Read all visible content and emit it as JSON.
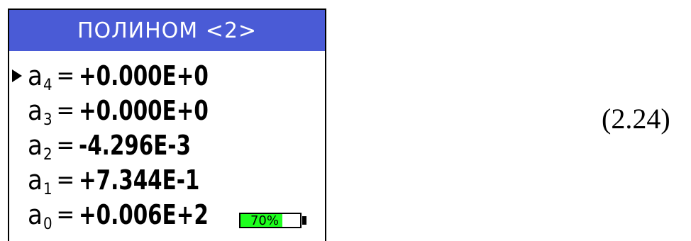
{
  "screen": {
    "title": "ПОЛИНОМ <2>",
    "coefficients": [
      {
        "name": "a",
        "sub": "4",
        "eq": "=",
        "value": "+0.000E+0",
        "selected": true
      },
      {
        "name": "a",
        "sub": "3",
        "eq": "=",
        "value": "+0.000E+0",
        "selected": false
      },
      {
        "name": "a",
        "sub": "2",
        "eq": "=",
        "value": "-4.296E-3",
        "selected": false
      },
      {
        "name": "a",
        "sub": "1",
        "eq": "=",
        "value": "+7.344E-1",
        "selected": false
      },
      {
        "name": "a",
        "sub": "0",
        "eq": "=",
        "value": "+0.006E+2",
        "selected": false
      }
    ],
    "battery": {
      "label": "70%",
      "level": 0.7,
      "fill_color": "#1fff1f"
    }
  },
  "equation_number": "(2.24)",
  "colors": {
    "title_bar": "#4a5bd6",
    "title_text": "#ffffff",
    "cursor": "#000000"
  },
  "icons": {
    "cursor": "triangle-right-icon",
    "battery": "battery-icon"
  }
}
